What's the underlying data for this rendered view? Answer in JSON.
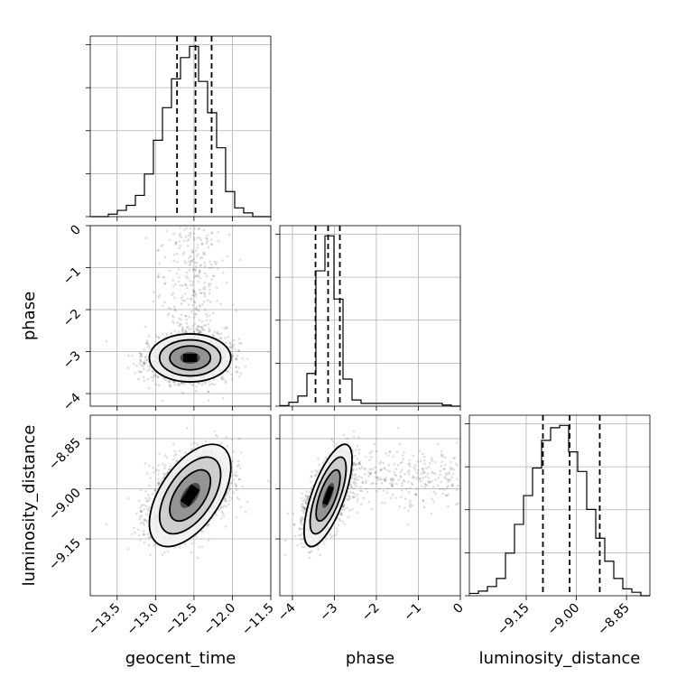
{
  "chart_data": {
    "type": "scatter",
    "subtype": "corner",
    "parameters": [
      "geocent_time",
      "phase",
      "luminosity_distance"
    ],
    "axis_labels": {
      "geocent_time": "geocent_time",
      "phase": "phase",
      "luminosity_distance": "luminosity_distance"
    },
    "ranges": {
      "geocent_time": [
        -13.85,
        -11.5
      ],
      "phase": [
        -4.3,
        0.0
      ],
      "luminosity_distance": [
        -9.32,
        -8.78
      ]
    },
    "ticks": {
      "geocent_time": {
        "values": [
          -13.5,
          -13.0,
          -12.5,
          -12.0,
          -11.5
        ],
        "labels": [
          "−13.5",
          "−13.0",
          "−12.5",
          "−12.0",
          "−11.5"
        ]
      },
      "phase": {
        "values": [
          -4,
          -3,
          -2,
          -1,
          0
        ],
        "labels": [
          "−4",
          "−3",
          "−2",
          "−1",
          "0"
        ]
      },
      "luminosity_distance": {
        "values": [
          -9.15,
          -9.0,
          -8.85
        ],
        "labels": [
          "−9.15",
          "−9.00",
          "−8.85"
        ]
      }
    },
    "quantiles": {
      "geocent_time": [
        -12.72,
        -12.48,
        -12.27
      ],
      "phase": [
        -3.45,
        -3.15,
        -2.87
      ],
      "luminosity_distance": [
        -9.1,
        -9.02,
        -8.93
      ]
    },
    "histograms": {
      "geocent_time": {
        "edges": [
          -13.85,
          -13.733,
          -13.615,
          -13.498,
          -13.38,
          -13.263,
          -13.145,
          -13.028,
          -12.91,
          -12.793,
          -12.675,
          -12.558,
          -12.44,
          -12.323,
          -12.205,
          -12.088,
          -11.97,
          -11.853,
          -11.735,
          -11.618,
          -11.5
        ],
        "counts": [
          0,
          0,
          2,
          5,
          9,
          17,
          34,
          61,
          87,
          110,
          127,
          136,
          108,
          83,
          55,
          20,
          7,
          3,
          0,
          0
        ]
      },
      "phase": {
        "edges": [
          -4.3,
          -4.085,
          -3.87,
          -3.655,
          -3.44,
          -3.225,
          -3.01,
          -2.795,
          -2.58,
          -2.365,
          -2.15,
          -1.935,
          -1.72,
          -1.505,
          -1.29,
          -1.075,
          -0.86,
          -0.645,
          -0.43,
          -0.215,
          0.0
        ],
        "counts": [
          1,
          7,
          18,
          58,
          240,
          302,
          190,
          48,
          11,
          5,
          5,
          5,
          5,
          5,
          5,
          5,
          5,
          5,
          2,
          0
        ]
      },
      "luminosity_distance": {
        "edges": [
          -9.32,
          -9.293,
          -9.266,
          -9.239,
          -9.212,
          -9.185,
          -9.158,
          -9.131,
          -9.104,
          -9.077,
          -9.05,
          -9.023,
          -8.996,
          -8.969,
          -8.942,
          -8.915,
          -8.888,
          -8.861,
          -8.834,
          -8.807,
          -8.78
        ],
        "counts": [
          2,
          4,
          8,
          15,
          37,
          62,
          87,
          111,
          135,
          146,
          148,
          125,
          108,
          75,
          50,
          30,
          15,
          6,
          3,
          0
        ]
      }
    },
    "posterior_center": {
      "geocent_time": -12.55,
      "phase": -3.15,
      "luminosity_distance": -9.02
    },
    "posterior_sigma": {
      "geocent_time": 0.26,
      "phase": 0.28,
      "luminosity_distance": 0.075
    },
    "correlations": {
      "geocent_time__phase": 0.0,
      "geocent_time__luminosity_distance": 0.55,
      "phase__luminosity_distance": 0.7
    },
    "contour_levels_sigma": [
      0.5,
      1.0,
      1.5,
      2.0
    ],
    "grid": true
  }
}
